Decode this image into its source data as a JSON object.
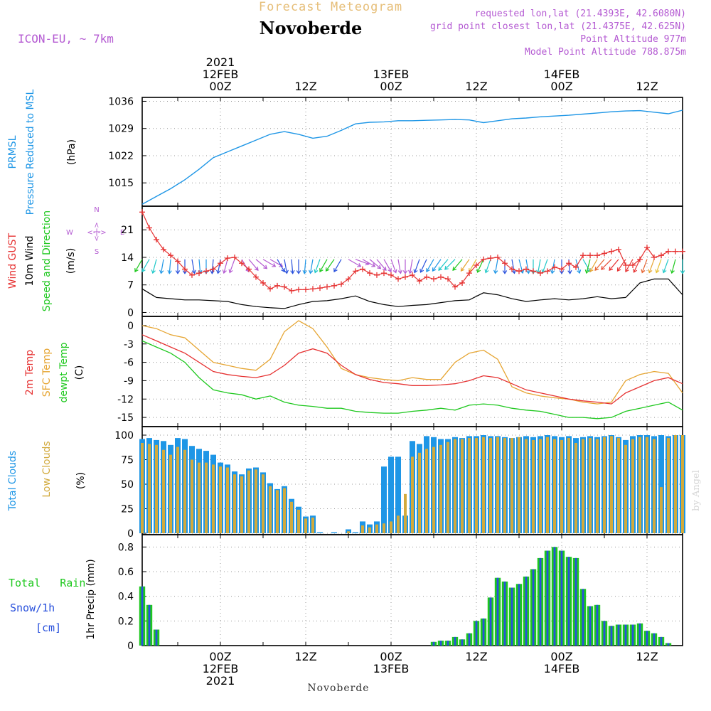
{
  "header": {
    "product_title": "Forecast Meteogram",
    "location": "Novoberde",
    "model": "ICON-EU, ~ 7km",
    "requested": "requested lon,lat (21.4393E, 42.6080N)",
    "grid_point": "grid point closest lon,lat (21.4375E, 42.625N)",
    "point_altitude": "Point Altitude 977m",
    "model_altitude": "Model Point Altitude 788.875m",
    "watermark": "by Angel",
    "footer_location": "Novoberde"
  },
  "colors": {
    "pressure": "#1e96e6",
    "gust": "#e63232",
    "wind": "#000000",
    "temp2m": "#e63232",
    "sfc": "#e6a532",
    "dewpt": "#1ec81e",
    "total_clouds": "#1e96e6",
    "low_clouds": "#d2aa3c",
    "rain": "#1ec81e",
    "snow": "#2850dc",
    "violet": "#b45ad2",
    "title_orange": "#e6be78"
  },
  "time_axis": {
    "top_labels": [
      {
        "hour": 18,
        "lines": [
          "2021",
          "12FEB",
          "00Z"
        ]
      },
      {
        "hour": 30,
        "lines": [
          "12Z"
        ]
      },
      {
        "hour": 42,
        "lines": [
          "13FEB",
          "00Z"
        ]
      },
      {
        "hour": 54,
        "lines": [
          "12Z"
        ]
      },
      {
        "hour": 66,
        "lines": [
          "14FEB",
          "00Z"
        ]
      },
      {
        "hour": 78,
        "lines": [
          "12Z"
        ]
      }
    ],
    "bottom_labels": [
      {
        "hour": 18,
        "lines": [
          "00Z",
          "12FEB",
          "2021"
        ]
      },
      {
        "hour": 30,
        "lines": [
          "12Z"
        ]
      },
      {
        "hour": 42,
        "lines": [
          "00Z",
          "13FEB"
        ]
      },
      {
        "hour": 54,
        "lines": [
          "12Z"
        ]
      },
      {
        "hour": 66,
        "lines": [
          "00Z",
          "14FEB"
        ]
      },
      {
        "hour": 78,
        "lines": [
          "12Z"
        ]
      }
    ]
  },
  "compass": {
    "n": "N",
    "s": "S",
    "w": "W",
    "e": "E",
    "line": "<-|->"
  },
  "panels": {
    "pressure": {
      "labels": [
        "PRMSL",
        "Pressure Reduced to MSL"
      ],
      "unit": "(hPa)",
      "ticks": [
        "1015",
        "1022",
        "1029",
        "1036"
      ]
    },
    "wind": {
      "labels": [
        "Wind GUST",
        "10m Wind",
        "Speed and Direction"
      ],
      "unit": "(m/s)",
      "ticks": [
        "0",
        "7",
        "14",
        "21"
      ]
    },
    "temp": {
      "labels": [
        "2m Temp",
        "SFC Temp",
        "dewpt Temp"
      ],
      "unit": "(C)",
      "ticks": [
        "-15",
        "-12",
        "-9",
        "-6",
        "-3",
        "0"
      ]
    },
    "clouds": {
      "labels": [
        "Total Clouds",
        "Low Clouds"
      ],
      "unit": "(%)",
      "ticks": [
        "0",
        "25",
        "50",
        "75",
        "100"
      ]
    },
    "precip": {
      "labels": [
        "Total   Rain",
        "Snow/1h",
        "[cm]"
      ],
      "unit": "1hr Precip (mm)",
      "ticks": [
        "0",
        "0.2",
        "0.4",
        "0.6",
        "0.8"
      ]
    }
  },
  "chart_data": {
    "type": "line",
    "x_unit": "hours from forecast start (00Z = 18, 12Z = 30)",
    "x_range": [
      7,
      83
    ],
    "pressure": {
      "ylim": [
        1009,
        1037
      ],
      "x": [
        7,
        9,
        11,
        13,
        15,
        17,
        19,
        21,
        23,
        25,
        27,
        29,
        31,
        33,
        35,
        37,
        39,
        41,
        43,
        45,
        47,
        49,
        51,
        53,
        55,
        57,
        59,
        61,
        63,
        65,
        67,
        69,
        71,
        73,
        75,
        77,
        79,
        81,
        83
      ],
      "values": [
        1009.5,
        1011.5,
        1013.5,
        1015.8,
        1018.5,
        1021.5,
        1023.0,
        1024.5,
        1026.0,
        1027.5,
        1028.2,
        1027.5,
        1026.5,
        1027.0,
        1028.5,
        1030.2,
        1030.6,
        1030.7,
        1031.0,
        1031.0,
        1031.1,
        1031.2,
        1031.3,
        1031.2,
        1030.5,
        1031.0,
        1031.5,
        1031.7,
        1032.0,
        1032.2,
        1032.4,
        1032.7,
        1033.0,
        1033.3,
        1033.5,
        1033.6,
        1033.2,
        1032.8,
        1033.7
      ]
    },
    "wind_gust": {
      "ylim": [
        -1,
        27
      ],
      "x": [
        7,
        8,
        9,
        10,
        11,
        12,
        13,
        14,
        15,
        16,
        17,
        18,
        19,
        20,
        21,
        22,
        23,
        24,
        25,
        26,
        27,
        28,
        29,
        30,
        31,
        32,
        33,
        34,
        35,
        36,
        37,
        38,
        39,
        40,
        41,
        42,
        43,
        44,
        45,
        46,
        47,
        48,
        49,
        50,
        51,
        52,
        53,
        54,
        55,
        56,
        57,
        58,
        59,
        60,
        61,
        62,
        63,
        64,
        65,
        66,
        67,
        68,
        69,
        70,
        71,
        72,
        73,
        74,
        75,
        76,
        77,
        78,
        79,
        80,
        81,
        82,
        83
      ],
      "values": [
        25.5,
        21.5,
        18.5,
        16.0,
        14.5,
        13.0,
        11.0,
        9.5,
        10.0,
        10.5,
        11.0,
        12.5,
        13.8,
        14.0,
        12.5,
        11.0,
        9.0,
        7.5,
        6.0,
        6.8,
        6.5,
        5.5,
        5.8,
        5.8,
        6.0,
        6.2,
        6.5,
        6.8,
        7.2,
        8.5,
        10.5,
        11.0,
        10.0,
        9.5,
        10.0,
        9.5,
        8.5,
        9.0,
        9.5,
        8.0,
        9.0,
        8.5,
        9.0,
        8.5,
        6.5,
        7.5,
        10.0,
        12.0,
        13.5,
        13.8,
        14.0,
        12.5,
        11.0,
        10.5,
        11.0,
        10.5,
        10.0,
        10.5,
        11.5,
        11.0,
        12.5,
        11.5,
        14.5,
        14.5,
        14.5,
        15.0,
        15.5,
        16.0,
        12.0,
        12.0,
        13.5,
        16.5,
        14.0,
        14.5,
        15.5,
        15.5,
        15.5
      ]
    },
    "wind_speed": {
      "ylim": [
        -1,
        27
      ],
      "x": [
        7,
        9,
        11,
        13,
        15,
        17,
        19,
        21,
        23,
        25,
        27,
        29,
        31,
        33,
        35,
        37,
        39,
        41,
        43,
        45,
        47,
        49,
        51,
        53,
        55,
        57,
        59,
        61,
        63,
        65,
        67,
        69,
        71,
        73,
        75,
        77,
        79,
        81,
        83
      ],
      "values": [
        6.0,
        3.8,
        3.5,
        3.2,
        3.2,
        3.0,
        2.8,
        2.0,
        1.5,
        1.2,
        1.0,
        2.0,
        2.8,
        3.0,
        3.5,
        4.2,
        2.8,
        2.0,
        1.5,
        1.8,
        2.0,
        2.5,
        3.0,
        3.2,
        5.0,
        4.5,
        3.5,
        2.8,
        3.2,
        3.5,
        3.2,
        3.5,
        4.0,
        3.5,
        3.8,
        7.5,
        8.5,
        8.5,
        4.5
      ]
    },
    "wind_arrows": {
      "x": [
        7,
        8,
        9,
        10,
        11,
        12,
        13,
        14,
        15,
        16,
        17,
        18,
        19,
        20,
        21,
        22,
        23,
        24,
        25,
        26,
        27,
        28,
        29,
        30,
        31,
        32,
        33,
        34,
        35,
        36,
        37,
        38,
        39,
        40,
        41,
        42,
        43,
        44,
        45,
        46,
        47,
        48,
        49,
        50,
        51,
        52,
        53,
        54,
        55,
        56,
        57,
        58,
        59,
        60,
        61,
        62,
        63,
        64,
        65,
        66,
        67,
        68,
        69,
        70,
        71,
        72,
        73,
        74,
        75,
        76,
        77,
        78,
        79,
        80,
        81,
        82,
        83
      ],
      "direction_from_deg": [
        30,
        30,
        15,
        10,
        5,
        0,
        0,
        350,
        355,
        0,
        5,
        10,
        15,
        20,
        330,
        320,
        310,
        300,
        300,
        330,
        350,
        355,
        0,
        5,
        10,
        20,
        30,
        35,
        30,
        300,
        290,
        300,
        310,
        320,
        330,
        340,
        350,
        0,
        10,
        20,
        25,
        30,
        35,
        40,
        45,
        40,
        35,
        30,
        25,
        20,
        10,
        0,
        350,
        345,
        350,
        0,
        10,
        20,
        10,
        0,
        355,
        345,
        330,
        15,
        30,
        40,
        45,
        40,
        35,
        30,
        25,
        20,
        20,
        20,
        20,
        15,
        0
      ],
      "colors": [
        "#1ec81e",
        "#1ec8c8",
        "#1ec8c8",
        "#1e96e6",
        "#1e96e6",
        "#2850dc",
        "#2850dc",
        "#2850dc",
        "#1e96e6",
        "#1e96e6",
        "#2850dc",
        "#2850dc",
        "#b45ad2",
        "#b45ad2",
        "#b45ad2",
        "#b45ad2",
        "#b45ad2",
        "#b45ad2",
        "#b45ad2",
        "#2850dc",
        "#2850dc",
        "#2850dc",
        "#2850dc",
        "#1e96e6",
        "#1e96e6",
        "#1ec8c8",
        "#1ec81e",
        "#1ec81e",
        "#2850dc",
        "#b45ad2",
        "#b45ad2",
        "#b45ad2",
        "#b45ad2",
        "#b45ad2",
        "#b45ad2",
        "#b45ad2",
        "#b45ad2",
        "#b45ad2",
        "#b45ad2",
        "#2850dc",
        "#2850dc",
        "#1e96e6",
        "#1e96e6",
        "#1ec8c8",
        "#1ec8c8",
        "#1ec81e",
        "#e6a532",
        "#e6be32",
        "#1ec81e",
        "#1ec8c8",
        "#1e96e6",
        "#2850dc",
        "#2850dc",
        "#1e96e6",
        "#1e96e6",
        "#1ec8c8",
        "#1ec8c8",
        "#1ec8c8",
        "#1e96e6",
        "#2850dc",
        "#2850dc",
        "#1e96e6",
        "#1ec8c8",
        "#1ec81e",
        "#e6a532",
        "#e66432",
        "#e64632",
        "#e63232",
        "#e63232",
        "#e63232",
        "#e63232",
        "#e66432",
        "#e6a532",
        "#e6be32",
        "#1ec8c8",
        "#1ec81e",
        "#1ec8c8"
      ]
    },
    "temperature": {
      "ylim": [
        -16.5,
        1.5
      ],
      "x": [
        7,
        9,
        11,
        13,
        15,
        17,
        19,
        21,
        23,
        25,
        27,
        29,
        31,
        33,
        35,
        37,
        39,
        41,
        43,
        45,
        47,
        49,
        51,
        53,
        55,
        57,
        59,
        61,
        63,
        65,
        67,
        69,
        71,
        73,
        75,
        77,
        79,
        81,
        83
      ],
      "temp2m": [
        -1.5,
        -2.5,
        -3.5,
        -4.5,
        -6.0,
        -7.5,
        -8.0,
        -8.3,
        -8.5,
        -8.0,
        -6.5,
        -4.5,
        -3.8,
        -4.5,
        -6.5,
        -8.0,
        -8.8,
        -9.3,
        -9.5,
        -9.8,
        -9.8,
        -9.7,
        -9.5,
        -9.0,
        -8.2,
        -8.5,
        -9.5,
        -10.5,
        -11.0,
        -11.5,
        -12.0,
        -12.3,
        -12.5,
        -12.8,
        -11.0,
        -10.0,
        -9.0,
        -8.5,
        -9.5
      ],
      "sfc": [
        0.0,
        -0.5,
        -1.5,
        -2.0,
        -4.0,
        -6.0,
        -6.5,
        -7.0,
        -7.3,
        -5.5,
        -1.0,
        0.8,
        -0.5,
        -3.5,
        -7.0,
        -8.0,
        -8.5,
        -8.8,
        -9.0,
        -8.5,
        -8.8,
        -8.8,
        -6.0,
        -4.5,
        -4.0,
        -5.5,
        -10.0,
        -11.0,
        -11.5,
        -11.8,
        -12.0,
        -12.5,
        -12.8,
        -12.5,
        -9.0,
        -8.0,
        -7.5,
        -7.8,
        -11.0
      ],
      "dewpt": [
        -2.5,
        -3.5,
        -4.5,
        -6.0,
        -8.5,
        -10.5,
        -11.0,
        -11.3,
        -12.0,
        -11.5,
        -12.5,
        -13.0,
        -13.2,
        -13.5,
        -13.5,
        -14.0,
        -14.2,
        -14.3,
        -14.3,
        -14.0,
        -13.8,
        -13.5,
        -13.8,
        -13.0,
        -12.8,
        -13.0,
        -13.5,
        -13.8,
        -14.0,
        -14.5,
        -15.0,
        -15.0,
        -15.2,
        -15.0,
        -14.0,
        -13.5,
        -13.0,
        -12.5,
        -13.8
      ]
    },
    "clouds": {
      "ylim": [
        0,
        100
      ],
      "x": [
        7,
        8,
        9,
        10,
        11,
        12,
        13,
        14,
        15,
        16,
        17,
        18,
        19,
        20,
        21,
        22,
        23,
        24,
        25,
        26,
        27,
        28,
        29,
        30,
        31,
        32,
        33,
        34,
        35,
        36,
        37,
        38,
        39,
        40,
        41,
        42,
        43,
        44,
        45,
        46,
        47,
        48,
        49,
        50,
        51,
        52,
        53,
        54,
        55,
        56,
        57,
        58,
        59,
        60,
        61,
        62,
        63,
        64,
        65,
        66,
        67,
        68,
        69,
        70,
        71,
        72,
        73,
        74,
        75,
        76,
        77,
        78,
        79,
        80,
        81,
        82,
        83
      ],
      "total": [
        96,
        97,
        95,
        94,
        90,
        97,
        96,
        89,
        86,
        84,
        80,
        72,
        70,
        63,
        60,
        66,
        67,
        62,
        51,
        45,
        48,
        35,
        27,
        17,
        18,
        1,
        0,
        1,
        0,
        4,
        1,
        12,
        9,
        12,
        68,
        78,
        78,
        18,
        94,
        91,
        99,
        98,
        96,
        96,
        98,
        97,
        99,
        99,
        100,
        99,
        99,
        98,
        97,
        98,
        99,
        98,
        99,
        100,
        99,
        98,
        99,
        97,
        98,
        99,
        98,
        99,
        100,
        98,
        95,
        99,
        100,
        100,
        99,
        100,
        99,
        100,
        100
      ],
      "low": [
        92,
        91,
        90,
        85,
        80,
        88,
        85,
        75,
        72,
        72,
        70,
        68,
        67,
        60,
        58,
        64,
        65,
        60,
        48,
        44,
        46,
        32,
        24,
        15,
        16,
        0,
        0,
        0,
        0,
        2,
        0,
        8,
        6,
        9,
        10,
        12,
        18,
        40,
        78,
        82,
        86,
        88,
        90,
        93,
        96,
        96,
        97,
        97,
        98,
        97,
        98,
        97,
        97,
        98,
        96,
        95,
        96,
        98,
        96,
        95,
        97,
        92,
        96,
        97,
        96,
        98,
        99,
        97,
        90,
        96,
        98,
        98,
        96,
        47,
        97,
        100,
        100
      ]
    },
    "precip": {
      "ylim": [
        0,
        0.9
      ],
      "x": [
        7,
        8,
        9,
        10,
        11,
        12,
        13,
        14,
        15,
        16,
        17,
        18,
        19,
        20,
        21,
        22,
        23,
        24,
        25,
        26,
        27,
        28,
        29,
        30,
        31,
        32,
        33,
        34,
        35,
        36,
        37,
        38,
        39,
        40,
        41,
        42,
        43,
        44,
        45,
        46,
        47,
        48,
        49,
        50,
        51,
        52,
        53,
        54,
        55,
        56,
        57,
        58,
        59,
        60,
        61,
        62,
        63,
        64,
        65,
        66,
        67,
        68,
        69,
        70,
        71,
        72,
        73,
        74,
        75,
        76,
        77,
        78,
        79,
        80,
        81,
        82,
        83
      ],
      "rain": [
        0.48,
        0.33,
        0.13,
        0,
        0,
        0,
        0,
        0,
        0,
        0,
        0,
        0,
        0,
        0,
        0,
        0,
        0,
        0,
        0,
        0,
        0,
        0,
        0,
        0,
        0,
        0,
        0,
        0,
        0,
        0,
        0,
        0,
        0,
        0,
        0,
        0,
        0,
        0,
        0,
        0,
        0,
        0.03,
        0.04,
        0.04,
        0.07,
        0.05,
        0.1,
        0.2,
        0.22,
        0.39,
        0.55,
        0.52,
        0.47,
        0.5,
        0.56,
        0.62,
        0.71,
        0.77,
        0.8,
        0.77,
        0.72,
        0.71,
        0.46,
        0.32,
        0.33,
        0.2,
        0.16,
        0.17,
        0.17,
        0.17,
        0.18,
        0.12,
        0.1,
        0.07,
        0.02,
        0,
        0
      ],
      "snow": [
        0,
        0,
        0,
        0,
        0,
        0,
        0,
        0,
        0,
        0,
        0,
        0,
        0,
        0,
        0,
        0,
        0,
        0,
        0,
        0,
        0,
        0,
        0,
        0,
        0,
        0,
        0,
        0,
        0,
        0,
        0,
        0,
        0,
        0,
        0,
        0,
        0,
        0,
        0,
        0,
        0,
        0,
        0,
        0,
        0,
        0,
        0,
        0,
        0,
        0,
        0,
        0,
        0,
        0,
        0,
        0,
        0,
        0,
        0,
        0,
        0,
        0,
        0,
        0,
        0,
        0,
        0,
        0,
        0,
        0,
        0,
        0,
        0,
        0,
        0,
        0,
        0
      ]
    }
  }
}
